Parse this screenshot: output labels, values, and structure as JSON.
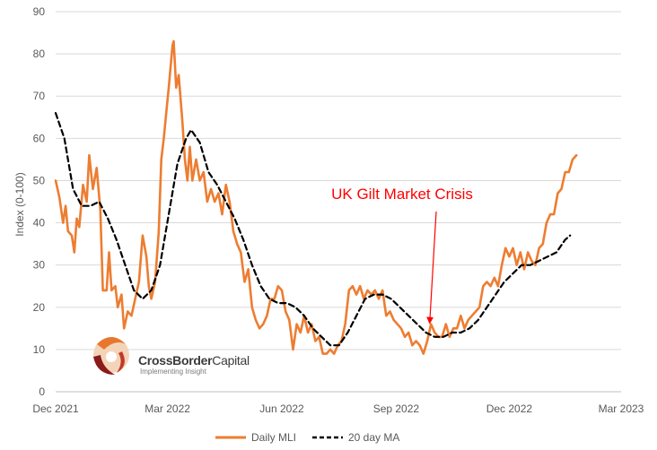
{
  "chart_data": {
    "type": "line",
    "title": "",
    "xlabel": "",
    "ylabel": "Index (0-100)",
    "ylim": [
      0,
      90
    ],
    "yticks": [
      0,
      10,
      20,
      30,
      40,
      50,
      60,
      70,
      80,
      90
    ],
    "xlim": [
      "2021-12-01",
      "2023-03-01"
    ],
    "xticks": [
      {
        "date": "2021-12-01",
        "label": "Dec 2021"
      },
      {
        "date": "2022-03-01",
        "label": "Mar 2022"
      },
      {
        "date": "2022-06-01",
        "label": "Jun 2022"
      },
      {
        "date": "2022-09-01",
        "label": "Sep 2022"
      },
      {
        "date": "2022-12-01",
        "label": "Dec 2022"
      },
      {
        "date": "2023-03-01",
        "label": "Mar 2023"
      }
    ],
    "grid": "horizontal",
    "legend": "bottom",
    "series": [
      {
        "name": "Daily MLI",
        "color": "#ed7d31",
        "style": "solid",
        "points": [
          [
            "2021-12-01",
            50
          ],
          [
            "2021-12-04",
            46
          ],
          [
            "2021-12-07",
            40
          ],
          [
            "2021-12-09",
            44
          ],
          [
            "2021-12-11",
            38
          ],
          [
            "2021-12-14",
            37
          ],
          [
            "2021-12-16",
            33
          ],
          [
            "2021-12-18",
            41
          ],
          [
            "2021-12-20",
            39
          ],
          [
            "2021-12-23",
            49
          ],
          [
            "2021-12-26",
            45
          ],
          [
            "2021-12-28",
            56
          ],
          [
            "2021-12-31",
            48
          ],
          [
            "2022-01-03",
            53
          ],
          [
            "2022-01-06",
            43
          ],
          [
            "2022-01-08",
            24
          ],
          [
            "2022-01-11",
            24
          ],
          [
            "2022-01-13",
            33
          ],
          [
            "2022-01-15",
            24
          ],
          [
            "2022-01-18",
            25
          ],
          [
            "2022-01-20",
            20
          ],
          [
            "2022-01-23",
            23
          ],
          [
            "2022-01-25",
            15
          ],
          [
            "2022-01-28",
            19
          ],
          [
            "2022-01-31",
            18
          ],
          [
            "2022-02-03",
            22
          ],
          [
            "2022-02-06",
            26
          ],
          [
            "2022-02-09",
            37
          ],
          [
            "2022-02-12",
            32
          ],
          [
            "2022-02-14",
            25
          ],
          [
            "2022-02-16",
            22
          ],
          [
            "2022-02-19",
            26
          ],
          [
            "2022-02-22",
            38
          ],
          [
            "2022-02-24",
            55
          ],
          [
            "2022-02-26",
            60
          ],
          [
            "2022-02-28",
            66
          ],
          [
            "2022-03-02",
            72
          ],
          [
            "2022-03-05",
            82
          ],
          [
            "2022-03-06",
            83
          ],
          [
            "2022-03-08",
            72
          ],
          [
            "2022-03-10",
            75
          ],
          [
            "2022-03-13",
            64
          ],
          [
            "2022-03-15",
            55
          ],
          [
            "2022-03-17",
            50
          ],
          [
            "2022-03-19",
            58
          ],
          [
            "2022-03-21",
            50
          ],
          [
            "2022-03-24",
            55
          ],
          [
            "2022-03-27",
            50
          ],
          [
            "2022-03-30",
            52
          ],
          [
            "2022-04-02",
            45
          ],
          [
            "2022-04-05",
            48
          ],
          [
            "2022-04-08",
            45
          ],
          [
            "2022-04-11",
            47
          ],
          [
            "2022-04-14",
            42
          ],
          [
            "2022-04-17",
            49
          ],
          [
            "2022-04-20",
            45
          ],
          [
            "2022-04-23",
            38
          ],
          [
            "2022-04-26",
            35
          ],
          [
            "2022-04-29",
            33
          ],
          [
            "2022-05-02",
            26
          ],
          [
            "2022-05-05",
            29
          ],
          [
            "2022-05-08",
            20
          ],
          [
            "2022-05-11",
            17
          ],
          [
            "2022-05-14",
            15
          ],
          [
            "2022-05-17",
            16
          ],
          [
            "2022-05-20",
            18
          ],
          [
            "2022-05-23",
            22
          ],
          [
            "2022-05-26",
            22
          ],
          [
            "2022-05-29",
            25
          ],
          [
            "2022-06-01",
            24
          ],
          [
            "2022-06-04",
            19
          ],
          [
            "2022-06-07",
            17
          ],
          [
            "2022-06-10",
            10
          ],
          [
            "2022-06-13",
            16
          ],
          [
            "2022-06-16",
            14
          ],
          [
            "2022-06-19",
            18
          ],
          [
            "2022-06-22",
            14
          ],
          [
            "2022-06-25",
            16
          ],
          [
            "2022-06-28",
            12
          ],
          [
            "2022-07-01",
            13
          ],
          [
            "2022-07-04",
            9
          ],
          [
            "2022-07-07",
            9
          ],
          [
            "2022-07-10",
            10
          ],
          [
            "2022-07-13",
            9
          ],
          [
            "2022-07-16",
            11
          ],
          [
            "2022-07-19",
            12
          ],
          [
            "2022-07-22",
            16
          ],
          [
            "2022-07-25",
            24
          ],
          [
            "2022-07-28",
            25
          ],
          [
            "2022-07-31",
            23
          ],
          [
            "2022-08-03",
            25
          ],
          [
            "2022-08-06",
            22
          ],
          [
            "2022-08-09",
            24
          ],
          [
            "2022-08-12",
            23
          ],
          [
            "2022-08-15",
            24
          ],
          [
            "2022-08-18",
            22
          ],
          [
            "2022-08-21",
            24
          ],
          [
            "2022-08-24",
            18
          ],
          [
            "2022-08-27",
            19
          ],
          [
            "2022-08-30",
            17
          ],
          [
            "2022-09-02",
            16
          ],
          [
            "2022-09-05",
            15
          ],
          [
            "2022-09-08",
            13
          ],
          [
            "2022-09-11",
            14
          ],
          [
            "2022-09-14",
            11
          ],
          [
            "2022-09-17",
            12
          ],
          [
            "2022-09-20",
            11
          ],
          [
            "2022-09-23",
            9
          ],
          [
            "2022-09-26",
            12
          ],
          [
            "2022-09-29",
            16
          ],
          [
            "2022-10-02",
            14
          ],
          [
            "2022-10-05",
            13
          ],
          [
            "2022-10-08",
            13
          ],
          [
            "2022-10-11",
            16
          ],
          [
            "2022-10-14",
            13
          ],
          [
            "2022-10-17",
            15
          ],
          [
            "2022-10-20",
            15
          ],
          [
            "2022-10-23",
            18
          ],
          [
            "2022-10-26",
            15
          ],
          [
            "2022-10-29",
            17
          ],
          [
            "2022-11-01",
            18
          ],
          [
            "2022-11-04",
            19
          ],
          [
            "2022-11-07",
            20
          ],
          [
            "2022-11-10",
            25
          ],
          [
            "2022-11-13",
            26
          ],
          [
            "2022-11-16",
            25
          ],
          [
            "2022-11-19",
            27
          ],
          [
            "2022-11-22",
            25
          ],
          [
            "2022-11-25",
            30
          ],
          [
            "2022-11-28",
            34
          ],
          [
            "2022-12-01",
            32
          ],
          [
            "2022-12-04",
            34
          ],
          [
            "2022-12-07",
            30
          ],
          [
            "2022-12-10",
            33
          ],
          [
            "2022-12-13",
            29
          ],
          [
            "2022-12-16",
            33
          ],
          [
            "2022-12-19",
            31
          ],
          [
            "2022-12-22",
            30
          ],
          [
            "2022-12-25",
            34
          ],
          [
            "2022-12-28",
            35
          ],
          [
            "2022-12-31",
            40
          ],
          [
            "2023-01-03",
            42
          ],
          [
            "2023-01-06",
            42
          ],
          [
            "2023-01-09",
            47
          ],
          [
            "2023-01-12",
            48
          ],
          [
            "2023-01-15",
            52
          ],
          [
            "2023-01-18",
            52
          ],
          [
            "2023-01-21",
            55
          ],
          [
            "2023-01-24",
            56
          ]
        ]
      },
      {
        "name": "20 day MA",
        "color": "#000000",
        "style": "dashed",
        "points": [
          [
            "2021-12-01",
            66
          ],
          [
            "2021-12-08",
            60
          ],
          [
            "2021-12-15",
            48
          ],
          [
            "2021-12-22",
            44
          ],
          [
            "2021-12-29",
            44
          ],
          [
            "2022-01-05",
            45
          ],
          [
            "2022-01-12",
            41
          ],
          [
            "2022-01-19",
            36
          ],
          [
            "2022-01-26",
            30
          ],
          [
            "2022-02-02",
            24
          ],
          [
            "2022-02-09",
            22
          ],
          [
            "2022-02-16",
            24
          ],
          [
            "2022-02-23",
            30
          ],
          [
            "2022-03-02",
            42
          ],
          [
            "2022-03-09",
            54
          ],
          [
            "2022-03-16",
            60
          ],
          [
            "2022-03-20",
            62
          ],
          [
            "2022-03-27",
            59
          ],
          [
            "2022-04-03",
            52
          ],
          [
            "2022-04-10",
            49
          ],
          [
            "2022-04-17",
            45
          ],
          [
            "2022-04-24",
            41
          ],
          [
            "2022-05-01",
            36
          ],
          [
            "2022-05-08",
            30
          ],
          [
            "2022-05-15",
            25
          ],
          [
            "2022-05-22",
            22
          ],
          [
            "2022-05-29",
            21
          ],
          [
            "2022-06-05",
            21
          ],
          [
            "2022-06-12",
            20
          ],
          [
            "2022-06-19",
            18
          ],
          [
            "2022-06-26",
            15
          ],
          [
            "2022-07-03",
            13
          ],
          [
            "2022-07-10",
            11
          ],
          [
            "2022-07-17",
            11
          ],
          [
            "2022-07-24",
            14
          ],
          [
            "2022-07-31",
            18
          ],
          [
            "2022-08-07",
            22
          ],
          [
            "2022-08-14",
            23
          ],
          [
            "2022-08-21",
            23
          ],
          [
            "2022-08-28",
            22
          ],
          [
            "2022-09-04",
            20
          ],
          [
            "2022-09-11",
            18
          ],
          [
            "2022-09-18",
            16
          ],
          [
            "2022-09-25",
            14
          ],
          [
            "2022-10-02",
            13
          ],
          [
            "2022-10-09",
            13
          ],
          [
            "2022-10-16",
            14
          ],
          [
            "2022-10-23",
            14
          ],
          [
            "2022-10-30",
            15
          ],
          [
            "2022-11-06",
            17
          ],
          [
            "2022-11-13",
            20
          ],
          [
            "2022-11-20",
            23
          ],
          [
            "2022-11-27",
            26
          ],
          [
            "2022-12-04",
            28
          ],
          [
            "2022-12-11",
            30
          ],
          [
            "2022-12-18",
            30
          ],
          [
            "2022-12-25",
            31
          ],
          [
            "2023-01-01",
            32
          ],
          [
            "2023-01-08",
            33
          ],
          [
            "2023-01-15",
            36
          ],
          [
            "2023-01-19",
            37
          ]
        ]
      }
    ],
    "annotations": [
      {
        "text": "UK Gilt Market Crisis",
        "color": "#ff0000",
        "arrow_to": [
          "2022-09-28",
          16
        ]
      }
    ]
  },
  "logo": {
    "text_bold": "CrossBorder",
    "text_regular": "Capital",
    "tagline": "Implementing Insight"
  }
}
